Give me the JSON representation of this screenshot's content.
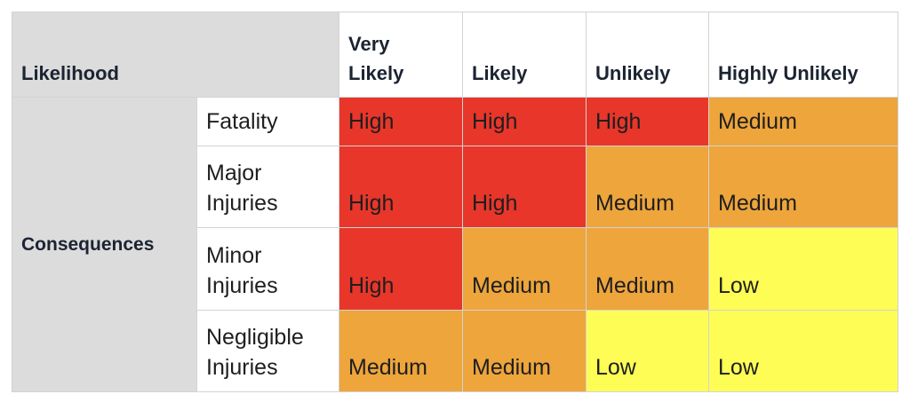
{
  "header": {
    "likelihood_label": "Likelihood",
    "consequences_label": "Consequences",
    "columns": [
      "Very\nLikely",
      "Likely",
      "Unlikely",
      "Highly Unlikely"
    ]
  },
  "rows": [
    {
      "label": "Fatality",
      "cells": [
        "High",
        "High",
        "High",
        "Medium"
      ]
    },
    {
      "label": "Major\nInjuries",
      "cells": [
        "High",
        "High",
        "Medium",
        "Medium"
      ]
    },
    {
      "label": "Minor\nInjuries",
      "cells": [
        "High",
        "Medium",
        "Medium",
        "Low"
      ]
    },
    {
      "label": "Negligible\nInjuries",
      "cells": [
        "Medium",
        "Medium",
        "Low",
        "Low"
      ]
    }
  ],
  "colors": {
    "High": "#e8362a",
    "Medium": "#eda53c",
    "Low": "#fdfd55",
    "header_bg": "#dcdcdc"
  }
}
